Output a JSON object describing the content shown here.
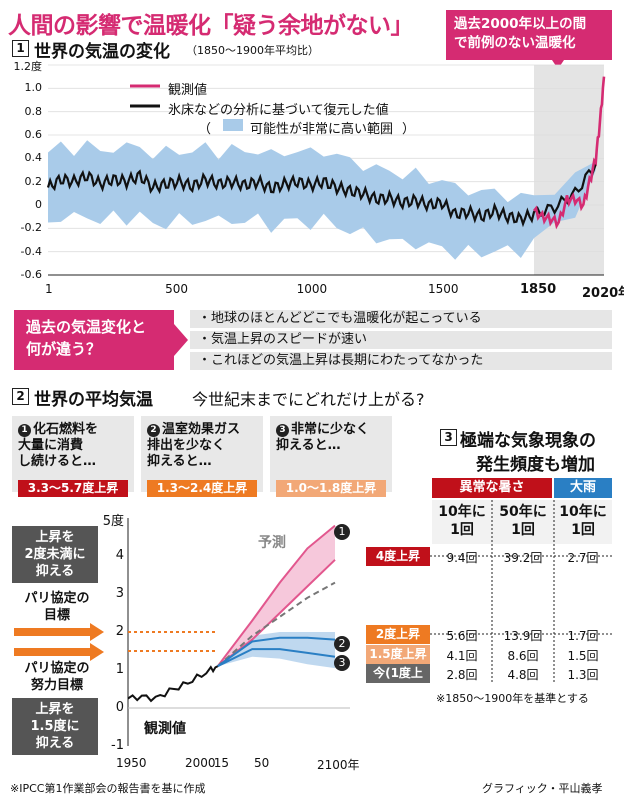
{
  "headline": "人間の影響で温暖化「疑う余地がない」",
  "callout": {
    "line1": "過去2000年以上の間",
    "line2": "で前例のない温暖化"
  },
  "section1": {
    "num": "1",
    "title": "世界の気温の変化",
    "subtitle": "（1850～1900年平均比）"
  },
  "section2": {
    "num": "2",
    "title": "世界の平均気温",
    "question": "今世紀末までにどれだけ上がる?"
  },
  "section3": {
    "num": "3",
    "title_line1": "極端な気象現象の",
    "title_line2": "発生頻度も増加"
  },
  "colors": {
    "pink": "#d52b72",
    "blue_band": "#a9cbe9",
    "blue_line": "#2a7fc4",
    "dark_red": "#c0101a",
    "orange": "#ee7a22",
    "peach": "#f2a877",
    "gray": "#777777"
  },
  "chart_data": [
    {
      "type": "line",
      "legend_placement": "top-center",
      "ylim": [
        -0.6,
        1.2
      ],
      "xlim": [
        1,
        2020
      ],
      "yticks": [
        "1.2度",
        "1.0",
        "0.8",
        "0.6",
        "0.4",
        "0.2",
        "0",
        "-0.2",
        "-0.4",
        "-0.6"
      ],
      "xticks": [
        "1",
        "500",
        "1000",
        "1500",
        "1850",
        "2020年"
      ],
      "legend": {
        "observed": "観測値",
        "reconstructed": "氷床などの分析に基づいて復元した値",
        "band_open": "（",
        "band": "可能性が非常に高い範囲",
        "band_close": "）"
      },
      "reconstructed": {
        "x": [
          1,
          50,
          100,
          150,
          200,
          250,
          300,
          350,
          400,
          450,
          500,
          550,
          600,
          650,
          700,
          750,
          800,
          850,
          900,
          950,
          1000,
          1050,
          1100,
          1150,
          1200,
          1250,
          1300,
          1350,
          1400,
          1450,
          1500,
          1550,
          1600,
          1650,
          1700,
          1750,
          1800,
          1850,
          1900,
          1950,
          2000
        ],
        "y": [
          0.15,
          0.22,
          0.2,
          0.25,
          0.18,
          0.22,
          0.2,
          0.25,
          0.15,
          0.18,
          0.2,
          0.16,
          0.22,
          0.18,
          0.2,
          0.17,
          0.2,
          0.14,
          0.18,
          0.2,
          0.17,
          0.2,
          0.15,
          0.12,
          0.1,
          0.05,
          0.06,
          0.02,
          0.04,
          0.0,
          0.02,
          -0.08,
          -0.06,
          -0.1,
          -0.05,
          -0.1,
          -0.12,
          -0.08,
          -0.02,
          0.1,
          0.35
        ],
        "band_upper": [
          0.45,
          0.5,
          0.48,
          0.52,
          0.45,
          0.5,
          0.48,
          0.52,
          0.42,
          0.45,
          0.48,
          0.44,
          0.5,
          0.45,
          0.48,
          0.45,
          0.48,
          0.42,
          0.45,
          0.47,
          0.44,
          0.47,
          0.42,
          0.38,
          0.35,
          0.3,
          0.3,
          0.26,
          0.26,
          0.22,
          0.22,
          0.14,
          0.14,
          0.1,
          0.12,
          0.08,
          0.05,
          0.1,
          0.12,
          0.22,
          0.42
        ],
        "band_lower": [
          -0.15,
          -0.1,
          -0.12,
          -0.08,
          -0.15,
          -0.1,
          -0.12,
          -0.08,
          -0.18,
          -0.15,
          -0.12,
          -0.16,
          -0.1,
          -0.15,
          -0.12,
          -0.15,
          -0.12,
          -0.18,
          -0.15,
          -0.13,
          -0.16,
          -0.13,
          -0.18,
          -0.22,
          -0.25,
          -0.28,
          -0.3,
          -0.33,
          -0.32,
          -0.36,
          -0.36,
          -0.42,
          -0.4,
          -0.42,
          -0.38,
          -0.4,
          -0.4,
          -0.3,
          -0.18,
          -0.05,
          0.25
        ]
      },
      "observed": {
        "x": [
          1850,
          1870,
          1890,
          1910,
          1930,
          1950,
          1970,
          1985,
          2000,
          2010,
          2020
        ],
        "y": [
          -0.05,
          -0.1,
          -0.12,
          -0.15,
          0.05,
          0.05,
          0.0,
          0.2,
          0.4,
          0.7,
          1.1
        ]
      }
    },
    {
      "type": "line",
      "xlim": [
        1950,
        2100
      ],
      "ylim": [
        -1,
        5
      ],
      "yticks": [
        "5度",
        "4",
        "3",
        "2",
        "1",
        "0",
        "-1"
      ],
      "xticks": [
        "1950",
        "2000",
        "15",
        "50",
        "2100年"
      ],
      "forecast_label": "予測",
      "observed_label": "観測値",
      "observed": {
        "x": [
          1950,
          1960,
          1970,
          1980,
          1990,
          2000,
          2010,
          2015
        ],
        "y": [
          0.25,
          0.3,
          0.25,
          0.45,
          0.6,
          0.8,
          1.0,
          1.1
        ]
      },
      "scenario1": {
        "x": [
          2015,
          2040,
          2060,
          2080,
          2100
        ],
        "upper": [
          1.1,
          2.3,
          3.3,
          4.2,
          4.8
        ],
        "lower": [
          1.1,
          1.8,
          2.5,
          3.2,
          3.9
        ]
      },
      "scenario_mid": {
        "x": [
          2015,
          2040,
          2060,
          2080,
          2100
        ],
        "y": [
          1.1,
          1.9,
          2.4,
          2.9,
          3.3
        ]
      },
      "scenario2": {
        "x": [
          2015,
          2040,
          2060,
          2080,
          2100
        ],
        "y": [
          1.1,
          1.75,
          1.85,
          1.85,
          1.8
        ]
      },
      "scenario3": {
        "x": [
          2015,
          2040,
          2060,
          2080,
          2100
        ],
        "y": [
          1.1,
          1.55,
          1.55,
          1.45,
          1.35
        ]
      },
      "band_blue": {
        "x": [
          2015,
          2040,
          2060,
          2080,
          2100
        ],
        "upper": [
          1.1,
          1.9,
          2.0,
          2.0,
          2.0
        ],
        "lower": [
          1.1,
          1.35,
          1.3,
          1.15,
          1.05
        ]
      },
      "paris_goal": 2.0,
      "paris_effort": 1.5
    }
  ],
  "differences": {
    "box_line1": "過去の気温変化と",
    "box_line2": "何が違う？",
    "bullets": [
      "・地球のほとんどどこでも温暖化が起こっている",
      "・気温上昇のスピードが速い",
      "・これほどの気温上昇は長期にわたってなかった"
    ]
  },
  "scenarios": [
    {
      "num": "1",
      "line1": "化石燃料を",
      "line2": "大量に消費",
      "line3": "し続けると…",
      "range": "3.3～5.7度上昇",
      "color": "#c0101a"
    },
    {
      "num": "2",
      "line1": "温室効果ガス",
      "line2": "排出を少なく",
      "line3": "抑えると…",
      "range": "1.3～2.4度上昇",
      "color": "#ee7a22"
    },
    {
      "num": "3",
      "line1": "非常に少なく",
      "line2": "抑えると…",
      "line3": "",
      "range": "1.0～1.8度上昇",
      "color": "#f2a877"
    }
  ],
  "left_labels": {
    "box1": [
      "上昇を",
      "2度未満に",
      "抑える"
    ],
    "paris": [
      "パリ協定の",
      "目標"
    ],
    "paris_effort": [
      "パリ協定の",
      "努力目標"
    ],
    "box2": [
      "上昇を",
      "1.5度に",
      "抑える"
    ]
  },
  "table": {
    "hot_header": "異常な暑さ",
    "rain_header": "大雨",
    "col1": [
      "10年に",
      "1回"
    ],
    "col2": [
      "50年に",
      "1回"
    ],
    "col3": [
      "10年に",
      "1回"
    ],
    "rows": [
      {
        "label": "4度上昇",
        "a": "9.4回",
        "b": "39.2回",
        "c": "2.7回",
        "color": "#c0101a"
      },
      {
        "label": "2度上昇",
        "a": "5.6回",
        "b": "13.9回",
        "c": "1.7回",
        "color": "#ee7a22"
      },
      {
        "label": "1.5度上昇",
        "a": "4.1回",
        "b": "8.6回",
        "c": "1.5回",
        "color": "#f2a877"
      },
      {
        "label": "今(1度上昇)",
        "a": "2.8回",
        "b": "4.8回",
        "c": "1.3回",
        "color": "#666666"
      }
    ],
    "note": "※1850～1900年を基準とする"
  },
  "footer": {
    "source": "※IPCC第1作業部会の報告書を基に作成",
    "credit": "グラフィック・平山義孝"
  }
}
